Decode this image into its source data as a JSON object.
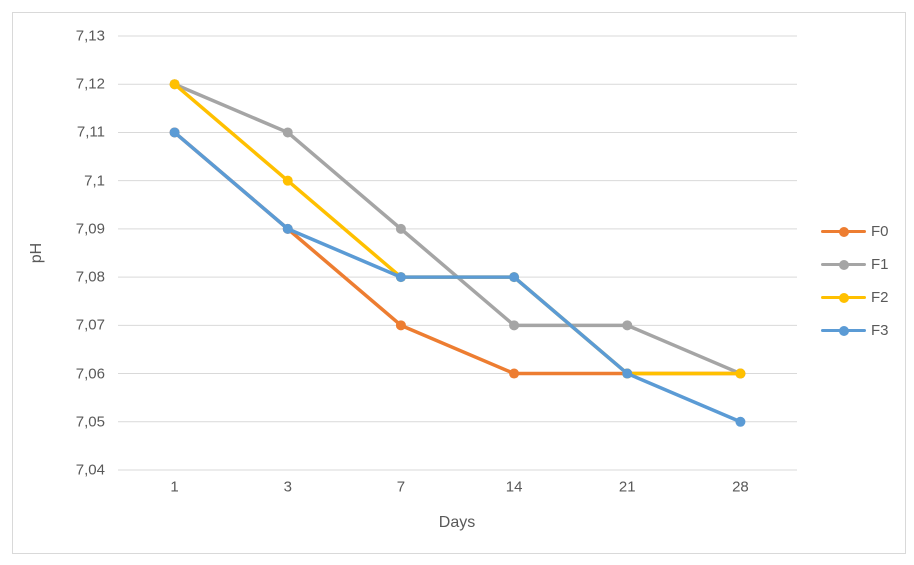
{
  "chart_data": {
    "type": "line",
    "categories": [
      "1",
      "3",
      "7",
      "14",
      "21",
      "28"
    ],
    "series": [
      {
        "name": "F0",
        "color": "#ED7D31",
        "values": [
          7.11,
          7.09,
          7.07,
          7.06,
          7.06,
          7.06
        ]
      },
      {
        "name": "F1",
        "color": "#A5A5A5",
        "values": [
          7.12,
          7.11,
          7.09,
          7.07,
          7.07,
          7.06
        ]
      },
      {
        "name": "F2",
        "color": "#FFC000",
        "values": [
          7.12,
          7.1,
          7.08,
          7.08,
          7.06,
          7.06
        ]
      },
      {
        "name": "F3",
        "color": "#5B9BD5",
        "values": [
          7.11,
          7.09,
          7.08,
          7.08,
          7.06,
          7.05
        ]
      }
    ],
    "title": "",
    "xlabel": "Days",
    "ylabel": "pH",
    "ylim": [
      7.04,
      7.13
    ],
    "ytick_step": 0.01,
    "ytick_labels": [
      "7,13",
      "7,12",
      "7,11",
      "7,1",
      "7,09",
      "7,08",
      "7,07",
      "7,06",
      "7,05",
      "7,04"
    ],
    "grid": "horizontal",
    "legend_position": "right",
    "gridline_color": "#D9D9D9",
    "axis_line_color": "#D9D9D9",
    "border_color": "#D9D9D9",
    "text_color": "#595959",
    "background_color": "#FFFFFF"
  }
}
